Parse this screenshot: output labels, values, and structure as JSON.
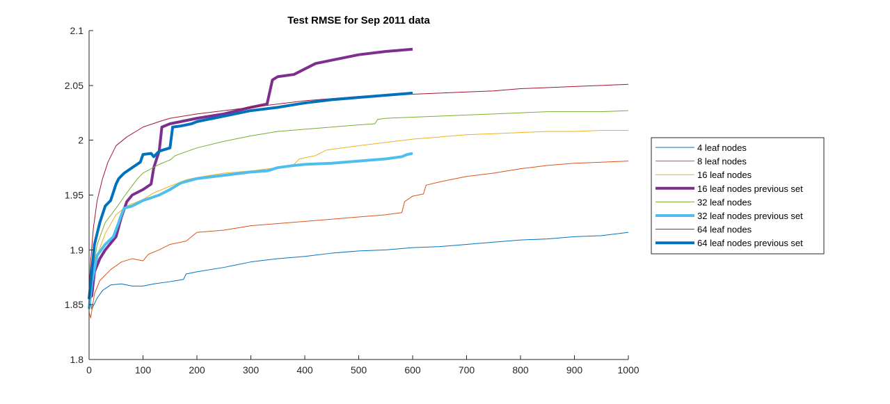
{
  "chart_data": {
    "type": "line",
    "title": "Test RMSE for Sep 2011 data",
    "xlabel": "",
    "ylabel": "",
    "xlim": [
      0,
      1000
    ],
    "ylim": [
      1.8,
      2.1
    ],
    "x_ticks": [
      "0",
      "100",
      "200",
      "300",
      "400",
      "500",
      "600",
      "700",
      "800",
      "900",
      "1000"
    ],
    "y_ticks": [
      "1.8",
      "1.85",
      "1.9",
      "1.95",
      "2",
      "2.05",
      "2.1"
    ],
    "grid": false,
    "legend_position": "right",
    "series": [
      {
        "name": "4 leaf nodes",
        "color": "#0072BD",
        "width": "thin",
        "points": [
          [
            0,
            1.858
          ],
          [
            5,
            1.846
          ],
          [
            15,
            1.856
          ],
          [
            25,
            1.863
          ],
          [
            40,
            1.868
          ],
          [
            60,
            1.869
          ],
          [
            80,
            1.867
          ],
          [
            100,
            1.867
          ],
          [
            120,
            1.869
          ],
          [
            150,
            1.871
          ],
          [
            175,
            1.873
          ],
          [
            180,
            1.878
          ],
          [
            200,
            1.88
          ],
          [
            250,
            1.884
          ],
          [
            300,
            1.889
          ],
          [
            350,
            1.892
          ],
          [
            400,
            1.894
          ],
          [
            450,
            1.897
          ],
          [
            500,
            1.899
          ],
          [
            550,
            1.9
          ],
          [
            600,
            1.902
          ],
          [
            650,
            1.903
          ],
          [
            700,
            1.905
          ],
          [
            750,
            1.907
          ],
          [
            800,
            1.909
          ],
          [
            850,
            1.91
          ],
          [
            900,
            1.912
          ],
          [
            950,
            1.913
          ],
          [
            1000,
            1.916
          ]
        ]
      },
      {
        "name": "8 leaf nodes",
        "color": "#D95319",
        "width": "thin",
        "points": [
          [
            0,
            1.843
          ],
          [
            3,
            1.838
          ],
          [
            10,
            1.86
          ],
          [
            20,
            1.872
          ],
          [
            40,
            1.882
          ],
          [
            60,
            1.889
          ],
          [
            80,
            1.892
          ],
          [
            100,
            1.89
          ],
          [
            110,
            1.896
          ],
          [
            130,
            1.9
          ],
          [
            150,
            1.905
          ],
          [
            180,
            1.908
          ],
          [
            190,
            1.912
          ],
          [
            200,
            1.916
          ],
          [
            250,
            1.918
          ],
          [
            300,
            1.922
          ],
          [
            350,
            1.924
          ],
          [
            400,
            1.926
          ],
          [
            450,
            1.928
          ],
          [
            500,
            1.93
          ],
          [
            550,
            1.932
          ],
          [
            580,
            1.934
          ],
          [
            585,
            1.944
          ],
          [
            600,
            1.949
          ],
          [
            620,
            1.951
          ],
          [
            625,
            1.959
          ],
          [
            650,
            1.962
          ],
          [
            700,
            1.967
          ],
          [
            750,
            1.97
          ],
          [
            800,
            1.974
          ],
          [
            850,
            1.977
          ],
          [
            900,
            1.979
          ],
          [
            950,
            1.98
          ],
          [
            1000,
            1.981
          ]
        ]
      },
      {
        "name": "16 leaf nodes",
        "color": "#EDB120",
        "width": "thin",
        "points": [
          [
            0,
            1.855
          ],
          [
            5,
            1.86
          ],
          [
            15,
            1.895
          ],
          [
            30,
            1.915
          ],
          [
            50,
            1.932
          ],
          [
            70,
            1.94
          ],
          [
            100,
            1.946
          ],
          [
            120,
            1.952
          ],
          [
            150,
            1.958
          ],
          [
            180,
            1.964
          ],
          [
            200,
            1.966
          ],
          [
            250,
            1.97
          ],
          [
            300,
            1.972
          ],
          [
            350,
            1.975
          ],
          [
            380,
            1.978
          ],
          [
            390,
            1.983
          ],
          [
            420,
            1.986
          ],
          [
            440,
            1.991
          ],
          [
            500,
            1.995
          ],
          [
            550,
            1.998
          ],
          [
            600,
            2.001
          ],
          [
            650,
            2.003
          ],
          [
            700,
            2.005
          ],
          [
            750,
            2.006
          ],
          [
            800,
            2.007
          ],
          [
            850,
            2.008
          ],
          [
            900,
            2.008
          ],
          [
            950,
            2.009
          ],
          [
            1000,
            2.009
          ]
        ]
      },
      {
        "name": "16 leaf nodes previous set",
        "color": "#7E2F8E",
        "width": "thick",
        "points": [
          [
            0,
            1.856
          ],
          [
            5,
            1.858
          ],
          [
            10,
            1.88
          ],
          [
            20,
            1.892
          ],
          [
            30,
            1.9
          ],
          [
            40,
            1.906
          ],
          [
            50,
            1.912
          ],
          [
            60,
            1.93
          ],
          [
            70,
            1.944
          ],
          [
            80,
            1.95
          ],
          [
            100,
            1.955
          ],
          [
            115,
            1.96
          ],
          [
            120,
            1.975
          ],
          [
            130,
            1.99
          ],
          [
            135,
            2.012
          ],
          [
            150,
            2.015
          ],
          [
            170,
            2.017
          ],
          [
            200,
            2.02
          ],
          [
            250,
            2.024
          ],
          [
            300,
            2.03
          ],
          [
            320,
            2.032
          ],
          [
            330,
            2.033
          ],
          [
            340,
            2.055
          ],
          [
            350,
            2.058
          ],
          [
            380,
            2.06
          ],
          [
            400,
            2.065
          ],
          [
            420,
            2.07
          ],
          [
            450,
            2.073
          ],
          [
            500,
            2.078
          ],
          [
            550,
            2.081
          ],
          [
            600,
            2.083
          ]
        ]
      },
      {
        "name": "32 leaf nodes",
        "color": "#77AC30",
        "width": "thin",
        "points": [
          [
            0,
            1.86
          ],
          [
            5,
            1.875
          ],
          [
            15,
            1.905
          ],
          [
            30,
            1.925
          ],
          [
            50,
            1.938
          ],
          [
            70,
            1.952
          ],
          [
            90,
            1.965
          ],
          [
            100,
            1.97
          ],
          [
            130,
            1.978
          ],
          [
            150,
            1.982
          ],
          [
            160,
            1.986
          ],
          [
            200,
            1.993
          ],
          [
            250,
            1.999
          ],
          [
            300,
            2.004
          ],
          [
            350,
            2.008
          ],
          [
            400,
            2.01
          ],
          [
            450,
            2.012
          ],
          [
            500,
            2.014
          ],
          [
            530,
            2.015
          ],
          [
            535,
            2.019
          ],
          [
            550,
            2.02
          ],
          [
            600,
            2.021
          ],
          [
            650,
            2.022
          ],
          [
            700,
            2.023
          ],
          [
            750,
            2.024
          ],
          [
            800,
            2.025
          ],
          [
            850,
            2.026
          ],
          [
            900,
            2.026
          ],
          [
            950,
            2.026
          ],
          [
            1000,
            2.027
          ]
        ]
      },
      {
        "name": "32 leaf nodes previous set",
        "color": "#4DBEEE",
        "width": "thick",
        "points": [
          [
            0,
            1.846
          ],
          [
            5,
            1.87
          ],
          [
            15,
            1.895
          ],
          [
            30,
            1.905
          ],
          [
            45,
            1.912
          ],
          [
            55,
            1.925
          ],
          [
            60,
            1.932
          ],
          [
            65,
            1.938
          ],
          [
            80,
            1.94
          ],
          [
            100,
            1.945
          ],
          [
            130,
            1.95
          ],
          [
            150,
            1.955
          ],
          [
            170,
            1.961
          ],
          [
            200,
            1.965
          ],
          [
            250,
            1.968
          ],
          [
            300,
            1.971
          ],
          [
            330,
            1.972
          ],
          [
            350,
            1.975
          ],
          [
            380,
            1.977
          ],
          [
            400,
            1.978
          ],
          [
            450,
            1.979
          ],
          [
            500,
            1.981
          ],
          [
            550,
            1.983
          ],
          [
            580,
            1.985
          ],
          [
            590,
            1.987
          ],
          [
            600,
            1.988
          ]
        ]
      },
      {
        "name": "64 leaf nodes",
        "color": "#A2142F",
        "width": "thin",
        "points": [
          [
            0,
            1.865
          ],
          [
            3,
            1.89
          ],
          [
            8,
            1.92
          ],
          [
            15,
            1.945
          ],
          [
            25,
            1.965
          ],
          [
            35,
            1.98
          ],
          [
            50,
            1.995
          ],
          [
            70,
            2.003
          ],
          [
            100,
            2.012
          ],
          [
            130,
            2.017
          ],
          [
            150,
            2.02
          ],
          [
            200,
            2.024
          ],
          [
            250,
            2.027
          ],
          [
            300,
            2.03
          ],
          [
            350,
            2.033
          ],
          [
            400,
            2.036
          ],
          [
            450,
            2.038
          ],
          [
            500,
            2.04
          ],
          [
            550,
            2.041
          ],
          [
            600,
            2.042
          ],
          [
            650,
            2.043
          ],
          [
            700,
            2.044
          ],
          [
            750,
            2.045
          ],
          [
            800,
            2.047
          ],
          [
            850,
            2.048
          ],
          [
            900,
            2.049
          ],
          [
            950,
            2.05
          ],
          [
            1000,
            2.051
          ]
        ]
      },
      {
        "name": "64 leaf nodes previous set",
        "color": "#0072BD",
        "width": "thick",
        "points": [
          [
            0,
            1.855
          ],
          [
            5,
            1.88
          ],
          [
            10,
            1.905
          ],
          [
            20,
            1.925
          ],
          [
            30,
            1.94
          ],
          [
            40,
            1.945
          ],
          [
            50,
            1.96
          ],
          [
            55,
            1.965
          ],
          [
            65,
            1.97
          ],
          [
            80,
            1.975
          ],
          [
            95,
            1.98
          ],
          [
            100,
            1.987
          ],
          [
            115,
            1.988
          ],
          [
            120,
            1.985
          ],
          [
            130,
            1.99
          ],
          [
            150,
            1.993
          ],
          [
            155,
            2.012
          ],
          [
            170,
            2.013
          ],
          [
            190,
            2.015
          ],
          [
            200,
            2.017
          ],
          [
            250,
            2.022
          ],
          [
            300,
            2.027
          ],
          [
            350,
            2.03
          ],
          [
            400,
            2.034
          ],
          [
            450,
            2.037
          ],
          [
            500,
            2.039
          ],
          [
            550,
            2.041
          ],
          [
            600,
            2.043
          ]
        ]
      }
    ]
  }
}
